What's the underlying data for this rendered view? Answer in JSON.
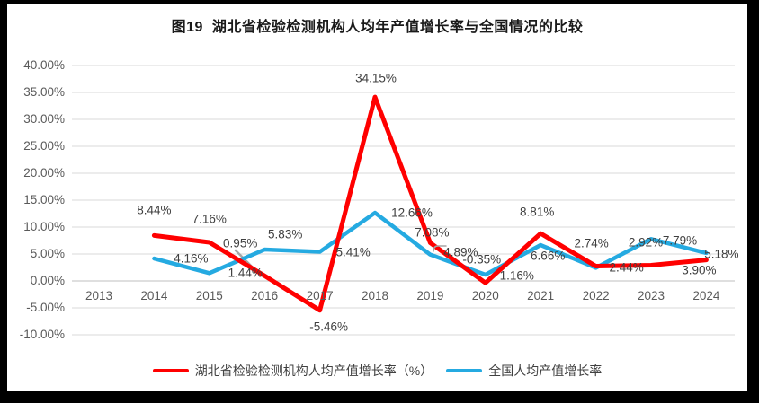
{
  "title": "图19  湖北省检验检测机构人均年产值增长率与全国情况的比较",
  "colors": {
    "frame": "#000000",
    "canvas": "#ffffff",
    "hubei_line": "#ff0000",
    "national_line": "#25aae1",
    "gridline": "#d9d9d9",
    "zero_axis": "#bfbfbf",
    "axis_text": "#595959",
    "data_label_text": "#3f3f3f",
    "leader_line": "#a6a6a6"
  },
  "chart_data": {
    "type": "line",
    "title": "图19  湖北省检验检测机构人均年产值增长率与全国情况的比较",
    "categories": [
      "2013",
      "2014",
      "2015",
      "2016",
      "2017",
      "2018",
      "2019",
      "2020",
      "2021",
      "2022",
      "2023",
      "2024"
    ],
    "series": [
      {
        "name": "湖北省检验检测机构人均产值增长率（%）",
        "color": "#ff0000",
        "values": [
          null,
          8.44,
          7.16,
          0.95,
          -5.46,
          34.15,
          7.08,
          -0.35,
          8.81,
          2.74,
          2.92,
          3.9
        ],
        "labels": [
          null,
          "8.44%",
          "7.16%",
          "0.95%",
          "-5.46%",
          "34.15%",
          "7.08%",
          "-0.35%",
          "8.81%",
          "2.74%",
          "2.92%",
          "3.90%"
        ]
      },
      {
        "name": "全国人均产值增长率",
        "color": "#25aae1",
        "values": [
          null,
          4.16,
          1.44,
          5.83,
          5.41,
          12.66,
          4.89,
          1.16,
          6.66,
          2.44,
          7.79,
          5.18
        ],
        "labels": [
          null,
          "4.16%",
          "1.44%",
          "5.83%",
          "5.41%",
          "12.66%",
          "4.89%",
          "1.16%",
          "6.66%",
          "2.44%",
          "7.79%",
          "5.18%"
        ]
      }
    ],
    "xlabel": "",
    "ylabel": "",
    "ylim": [
      -10,
      40
    ],
    "ytick_step": 5,
    "ytick_labels": [
      "40.00%",
      "35.00%",
      "30.00%",
      "25.00%",
      "20.00%",
      "15.00%",
      "10.00%",
      "5.00%",
      "0.00%",
      "-5.00%",
      "-10.00%"
    ],
    "grid": true,
    "legend_position": "bottom"
  },
  "legend": {
    "items": [
      {
        "label": "湖北省检验检测机构人均产值增长率（%）",
        "color": "#ff0000"
      },
      {
        "label": "全国人均产值增长率",
        "color": "#25aae1"
      }
    ]
  }
}
